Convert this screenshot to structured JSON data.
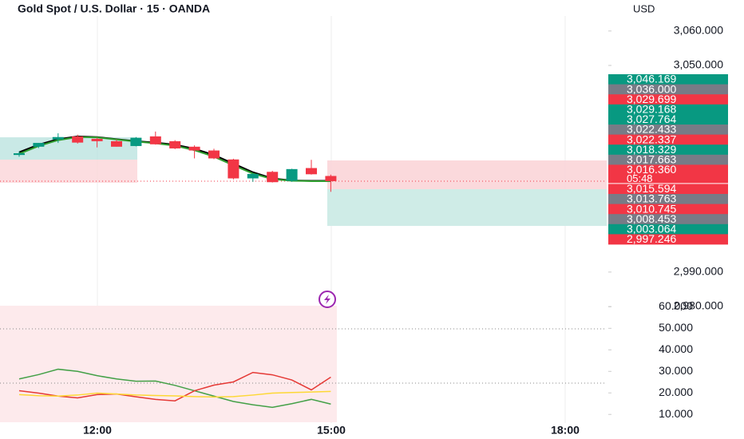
{
  "chart_data": {
    "type": "candlestick",
    "title": "Gold Spot / U.S. Dollar · 15 · OANDA",
    "currency": "USD",
    "up_color": "#089981",
    "down_color": "#f23645",
    "ylim": [
      2980,
      3069
    ],
    "yticks": [
      {
        "value": 3060,
        "label": "3,060.000"
      },
      {
        "value": 3050,
        "label": "3,050.000"
      },
      {
        "value": 2990,
        "label": "2,990.000"
      },
      {
        "value": 2980,
        "label": "2,980.000"
      }
    ],
    "candles": [
      {
        "open": 3024.0,
        "high": 3025.0,
        "low": 3023.5,
        "close": 3024.5
      },
      {
        "open": 3026.4,
        "high": 3027.5,
        "low": 3026.0,
        "close": 3027.5
      },
      {
        "open": 3028.5,
        "high": 3030.3,
        "low": 3027.5,
        "close": 3029.2
      },
      {
        "open": 3029.4,
        "high": 3029.9,
        "low": 3027.3,
        "close": 3027.6
      },
      {
        "open": 3028.7,
        "high": 3029.0,
        "low": 3026.2,
        "close": 3028.0
      },
      {
        "open": 3028.0,
        "high": 3028.5,
        "low": 3026.4,
        "close": 3026.4
      },
      {
        "open": 3026.6,
        "high": 3029.2,
        "low": 3026.5,
        "close": 3029.0
      },
      {
        "open": 3029.4,
        "high": 3030.8,
        "low": 3027.0,
        "close": 3027.1
      },
      {
        "open": 3028.0,
        "high": 3028.3,
        "low": 3025.7,
        "close": 3025.9
      },
      {
        "open": 3026.4,
        "high": 3026.8,
        "low": 3023.0,
        "close": 3025.3
      },
      {
        "open": 3025.3,
        "high": 3025.8,
        "low": 3022.8,
        "close": 3023.0
      },
      {
        "open": 3022.7,
        "high": 3022.9,
        "low": 3016.9,
        "close": 3017.2
      },
      {
        "open": 3017.2,
        "high": 3018.8,
        "low": 3016.2,
        "close": 3018.5
      },
      {
        "open": 3019.1,
        "high": 3019.4,
        "low": 3016.0,
        "close": 3016.1
      },
      {
        "open": 3016.5,
        "high": 3020.0,
        "low": 3016.2,
        "close": 3019.9
      },
      {
        "open": 3020.2,
        "high": 3022.6,
        "low": 3018.3,
        "close": 3018.4
      },
      {
        "open": 3017.9,
        "high": 3018.3,
        "low": 3013.3,
        "close": 3016.4
      }
    ],
    "overlays": [
      {
        "color": "#000000",
        "values": [
          3024.8,
          3027.0,
          3028.6,
          3029.4,
          3029.2,
          3028.6,
          3028.0,
          3027.6,
          3027.0,
          3025.8,
          3024.0,
          3021.5,
          3019.0,
          3017.2,
          3016.6,
          3016.5,
          3016.5
        ]
      },
      {
        "color": "#2e9e2e",
        "values": [
          3024.3,
          3026.6,
          3028.3,
          3029.2,
          3029.1,
          3028.5,
          3027.9,
          3027.4,
          3026.7,
          3025.4,
          3023.5,
          3021.0,
          3018.6,
          3017.0,
          3016.5,
          3016.4,
          3016.4
        ]
      }
    ],
    "price_labels": [
      {
        "label": "3,046.169",
        "color": "#089981"
      },
      {
        "label": "3,036.000",
        "color": "#787b86"
      },
      {
        "label": "3,029.699",
        "color": "#f23645"
      },
      {
        "label": "3,029.168",
        "color": "#089981"
      },
      {
        "label": "3,027.764",
        "color": "#089981"
      },
      {
        "label": "3,022.433",
        "color": "#787b86"
      },
      {
        "label": "3,022.337",
        "color": "#f23645"
      },
      {
        "label": "3,018.329",
        "color": "#089981"
      },
      {
        "label": "3,017.663",
        "color": "#787b86"
      },
      {
        "label": "3,016.360",
        "color": "#f23645",
        "countdown": "05:48"
      },
      {
        "label": "3,015.594",
        "color": "#f23645"
      },
      {
        "label": "3,013.763",
        "color": "#787b86"
      },
      {
        "label": "3,010.745",
        "color": "#f23645"
      },
      {
        "label": "3,008.453",
        "color": "#787b86"
      },
      {
        "label": "3,003.064",
        "color": "#089981"
      },
      {
        "label": "2,997.246",
        "color": "#f23645"
      }
    ],
    "xtick_labels": [
      "12:00",
      "15:00",
      "18:00"
    ],
    "indicator": {
      "ylim": [
        6,
        60.5
      ],
      "yticks": [
        {
          "value": 60,
          "label": "60.000"
        },
        {
          "value": 50,
          "label": "50.000"
        },
        {
          "value": 40,
          "label": "40.000"
        },
        {
          "value": 30,
          "label": "30.000"
        },
        {
          "value": 20,
          "label": "20.000"
        },
        {
          "value": 10,
          "label": "10.000"
        }
      ],
      "series": [
        {
          "color": "#43a047",
          "values": [
            26.5,
            28.5,
            31,
            30,
            28,
            26.5,
            25.4,
            25.5,
            23.5,
            21,
            18.5,
            16,
            14.5,
            13.3,
            15,
            17,
            14.8
          ]
        },
        {
          "color": "#e53935",
          "values": [
            21,
            19.9,
            18.5,
            17.7,
            19.2,
            19.5,
            18.2,
            17,
            16.3,
            21,
            23.6,
            25.1,
            29.5,
            28.4,
            26,
            21.4,
            27.3
          ]
        },
        {
          "color": "#fdd835",
          "values": [
            19.2,
            18.7,
            18.5,
            19,
            19.9,
            19.5,
            19,
            18.8,
            18.6,
            18.3,
            18.1,
            18.3,
            19,
            19.9,
            20.2,
            20.4,
            20.7
          ]
        }
      ]
    }
  }
}
